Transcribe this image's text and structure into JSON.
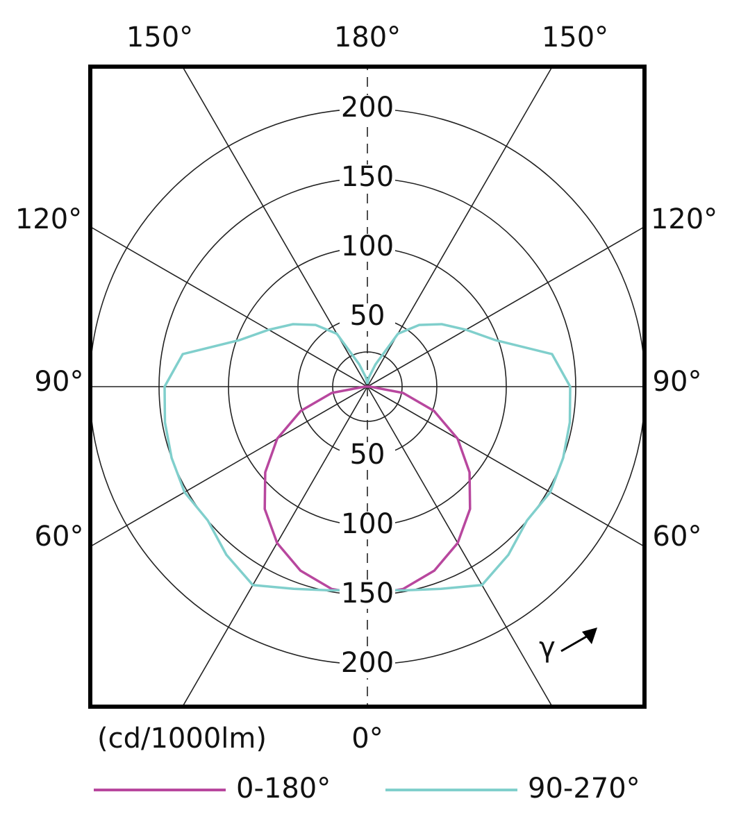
{
  "chart_data": {
    "type": "polar",
    "axis_label": "(cd/1000lm)",
    "annotation": "γ",
    "angle_ticks": [
      {
        "value": 180,
        "label": "180°"
      },
      {
        "value": 150,
        "label": "150°"
      },
      {
        "value": 120,
        "label": "120°"
      },
      {
        "value": 90,
        "label": "90°"
      },
      {
        "value": 60,
        "label": "60°"
      },
      {
        "value": 0,
        "label": "0°"
      }
    ],
    "rlim": [
      0,
      230
    ],
    "rgrid": [
      25,
      50,
      100,
      150,
      200
    ],
    "rticks": [
      50,
      100,
      150,
      200
    ],
    "spokes": [
      0,
      30,
      60,
      90,
      120,
      150,
      180
    ],
    "angles": [
      0,
      10,
      20,
      30,
      40,
      50,
      60,
      70,
      80,
      90,
      100,
      110,
      120,
      130,
      140,
      150,
      160,
      170,
      180
    ],
    "series": [
      {
        "name": "0-180°",
        "color": "#b8479e",
        "values": [
          150,
          148,
          141,
          130,
          115,
          96,
          75,
          51,
          26,
          2,
          0,
          0,
          0,
          0,
          0,
          0,
          0,
          0,
          0
        ]
      },
      {
        "name": "90-270°",
        "color": "#80cfcc",
        "values": [
          146,
          149,
          155,
          165,
          158,
          150,
          152,
          150,
          148,
          146,
          135,
          98,
          82,
          70,
          58,
          44,
          17,
          7,
          2
        ]
      }
    ]
  }
}
